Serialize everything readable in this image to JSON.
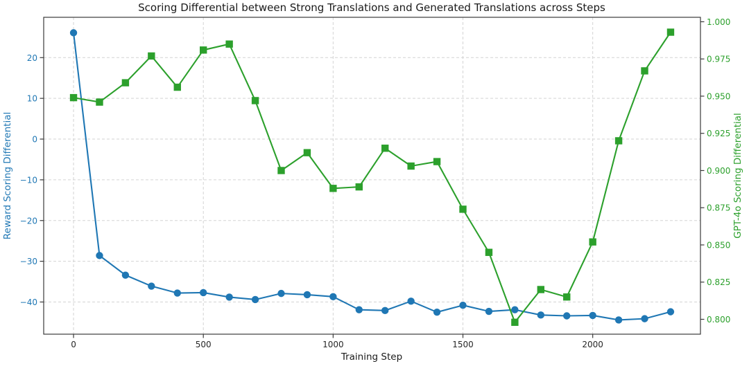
{
  "chart_data": {
    "type": "line",
    "title": "Scoring Differential between Strong Translations and Generated Translations across Steps",
    "xlabel": "Training Step",
    "legend_position": "none",
    "grid": "dashed-light-gray",
    "background_color": "#ffffff",
    "spine_color": "#3a3a3a",
    "grid_color": "#d3d3d3",
    "x_tick_color": "#262626",
    "x": [
      0,
      100,
      200,
      300,
      400,
      500,
      600,
      700,
      800,
      900,
      1000,
      1100,
      1200,
      1300,
      1400,
      1500,
      1600,
      1700,
      1800,
      1900,
      2000,
      2100,
      2200,
      2300
    ],
    "x_axis": {
      "tick_labels": [
        "0",
        "500",
        "1000",
        "1500",
        "2000"
      ],
      "tick_values": [
        0,
        500,
        1000,
        1500,
        2000
      ],
      "lim": [
        -115,
        2415
      ]
    },
    "left_axis": {
      "label": "Reward Scoring Differential",
      "color": "#1f77b4",
      "tick_labels": [
        "20",
        "10",
        "0",
        "−10",
        "−20",
        "−30",
        "−40"
      ],
      "tick_values": [
        20,
        10,
        0,
        -10,
        -20,
        -30,
        -40
      ],
      "lim": [
        -47.9,
        29.9
      ]
    },
    "right_axis": {
      "label": "GPT-4o Scoring Differential",
      "color": "#2ca02c",
      "tick_labels": [
        "1.000",
        "0.975",
        "0.950",
        "0.925",
        "0.900",
        "0.875",
        "0.850",
        "0.825",
        "0.800"
      ],
      "tick_values": [
        1.0,
        0.975,
        0.95,
        0.925,
        0.9,
        0.875,
        0.85,
        0.825,
        0.8
      ],
      "lim": [
        0.79,
        1.003
      ]
    },
    "series": [
      {
        "name": "Reward Scoring Differential",
        "axis": "left",
        "color": "#1f77b4",
        "marker": "circle",
        "values": [
          26.1,
          -28.6,
          -33.4,
          -36.1,
          -37.8,
          -37.7,
          -38.8,
          -39.4,
          -37.9,
          -38.2,
          -38.7,
          -41.9,
          -42.1,
          -39.8,
          -42.5,
          -40.8,
          -42.3,
          -41.9,
          -43.2,
          -43.4,
          -43.3,
          -44.4,
          -44.1,
          -42.4
        ]
      },
      {
        "name": "GPT-4o Scoring Differential",
        "axis": "right",
        "color": "#2ca02c",
        "marker": "square",
        "values": [
          0.949,
          0.946,
          0.959,
          0.977,
          0.956,
          0.981,
          0.985,
          0.947,
          0.9,
          0.912,
          0.888,
          0.889,
          0.915,
          0.903,
          0.906,
          0.874,
          0.845,
          0.798,
          0.82,
          0.815,
          0.852,
          0.92,
          0.967,
          0.993
        ]
      }
    ]
  }
}
